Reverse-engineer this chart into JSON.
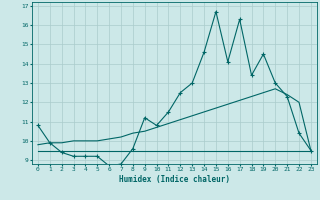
{
  "xlabel": "Humidex (Indice chaleur)",
  "background_color": "#cce8e8",
  "grid_color": "#aacccc",
  "line_color": "#006666",
  "xlim": [
    -0.5,
    23.5
  ],
  "ylim": [
    8.8,
    17.2
  ],
  "yticks": [
    9,
    10,
    11,
    12,
    13,
    14,
    15,
    16,
    17
  ],
  "xticks": [
    0,
    1,
    2,
    3,
    4,
    5,
    6,
    7,
    8,
    9,
    10,
    11,
    12,
    13,
    14,
    15,
    16,
    17,
    18,
    19,
    20,
    21,
    22,
    23
  ],
  "line1_x": [
    0,
    1,
    2,
    3,
    4,
    5,
    6,
    7,
    8,
    9,
    10,
    11,
    12,
    13,
    14,
    15,
    16,
    17,
    18,
    19,
    20,
    21,
    22,
    23
  ],
  "line1_y": [
    10.8,
    9.9,
    9.4,
    9.2,
    9.2,
    9.2,
    8.7,
    8.8,
    9.6,
    11.2,
    10.8,
    11.5,
    12.5,
    13.0,
    14.6,
    16.7,
    14.1,
    16.3,
    13.4,
    14.5,
    13.0,
    12.3,
    10.4,
    9.5
  ],
  "line2_x": [
    0,
    1,
    2,
    3,
    4,
    5,
    6,
    7,
    8,
    9,
    10,
    11,
    12,
    13,
    14,
    15,
    16,
    17,
    18,
    19,
    20,
    21,
    22,
    23
  ],
  "line2_y": [
    9.5,
    9.5,
    9.5,
    9.5,
    9.5,
    9.5,
    9.5,
    9.5,
    9.5,
    9.5,
    9.5,
    9.5,
    9.5,
    9.5,
    9.5,
    9.5,
    9.5,
    9.5,
    9.5,
    9.5,
    9.5,
    9.5,
    9.5,
    9.5
  ],
  "line3_x": [
    0,
    1,
    2,
    3,
    4,
    5,
    6,
    7,
    8,
    9,
    10,
    11,
    12,
    13,
    14,
    15,
    16,
    17,
    18,
    19,
    20,
    21,
    22,
    23
  ],
  "line3_y": [
    9.8,
    9.9,
    9.9,
    10.0,
    10.0,
    10.0,
    10.1,
    10.2,
    10.4,
    10.5,
    10.7,
    10.9,
    11.1,
    11.3,
    11.5,
    11.7,
    11.9,
    12.1,
    12.3,
    12.5,
    12.7,
    12.4,
    12.0,
    9.5
  ]
}
